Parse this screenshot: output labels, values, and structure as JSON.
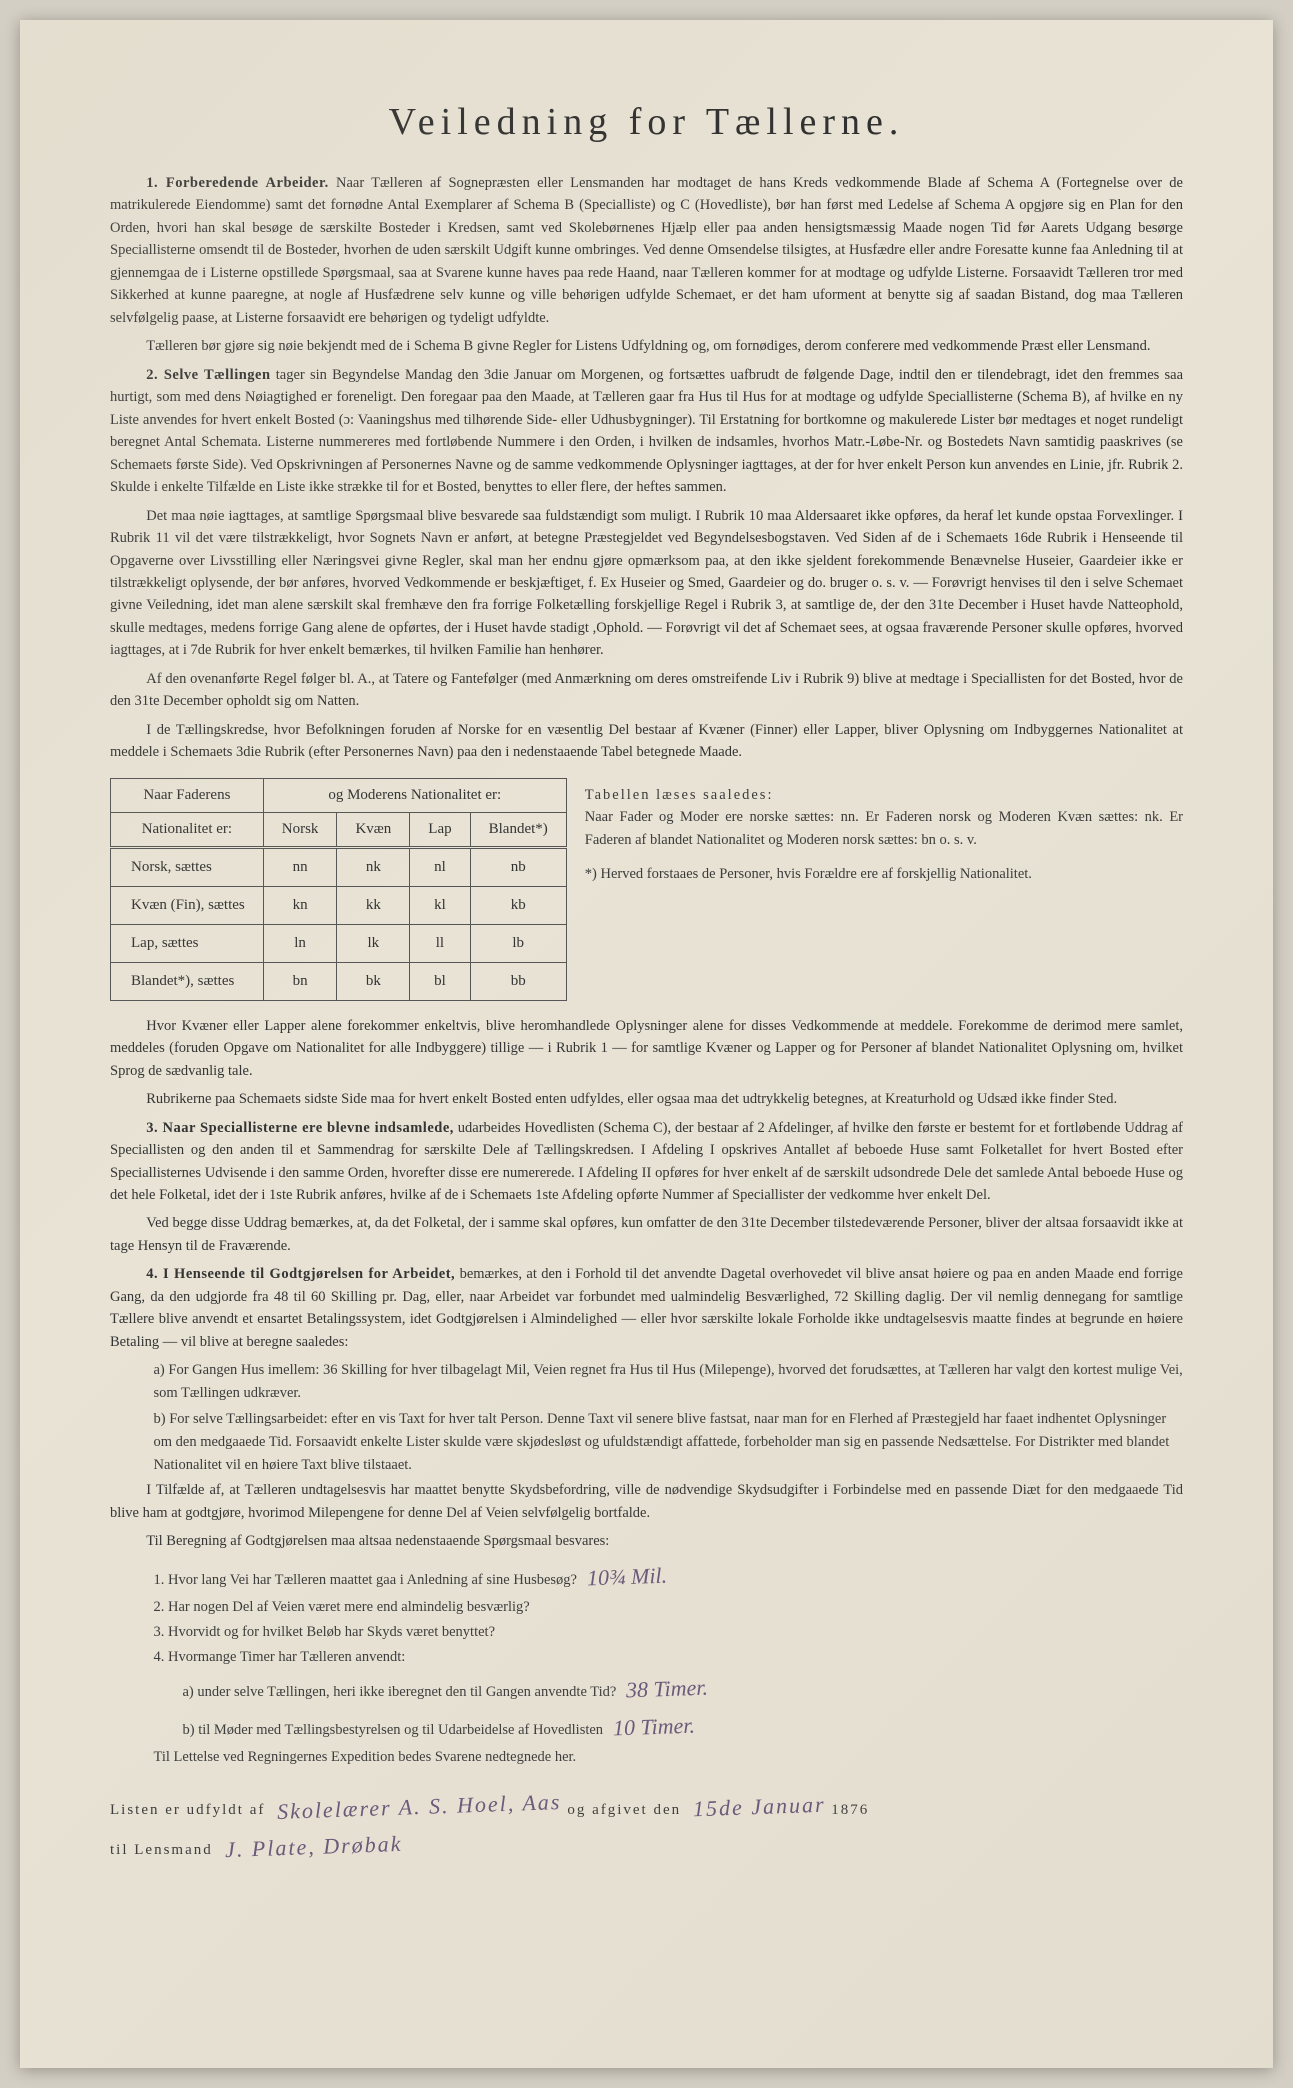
{
  "title": "Veiledning for Tællerne.",
  "paragraphs": {
    "p1_lead": "1. Forberedende Arbeider.",
    "p1": "Naar Tælleren af Sognepræsten eller Lensmanden har modtaget de hans Kreds vedkommende Blade af Schema A (Fortegnelse over de matrikulerede Eiendomme) samt det fornødne Antal Exemplarer af Schema B (Specialliste) og C (Hovedliste), bør han først med Ledelse af Schema A opgjøre sig en Plan for den Orden, hvori han skal besøge de særskilte Bosteder i Kredsen, samt ved Skolebørnenes Hjælp eller paa anden hensigtsmæssig Maade nogen Tid før Aarets Udgang besørge Speciallisterne omsendt til de Bosteder, hvorhen de uden særskilt Udgift kunne ombringes. Ved denne Omsendelse tilsigtes, at Husfædre eller andre Foresatte kunne faa Anledning til at gjennemgaa de i Listerne opstillede Spørgsmaal, saa at Svarene kunne haves paa rede Haand, naar Tælleren kommer for at modtage og udfylde Listerne. Forsaavidt Tælleren tror med Sikkerhed at kunne paaregne, at nogle af Husfædrene selv kunne og ville behørigen udfylde Schemaet, er det ham uforment at benytte sig af saadan Bistand, dog maa Tælleren selvfølgelig paase, at Listerne forsaavidt ere behørigen og tydeligt udfyldte.",
    "p1b": "Tælleren bør gjøre sig nøie bekjendt med de i Schema B givne Regler for Listens Udfyldning og, om fornødiges, derom conferere med vedkommende Præst eller Lensmand.",
    "p2_lead": "2. Selve Tællingen",
    "p2": "tager sin Begyndelse Mandag den 3die Januar om Morgenen, og fortsættes uafbrudt de følgende Dage, indtil den er tilendebragt, idet den fremmes saa hurtigt, som med dens Nøiagtighed er foreneligt. Den foregaar paa den Maade, at Tælleren gaar fra Hus til Hus for at modtage og udfylde Speciallisterne (Schema B), af hvilke en ny Liste anvendes for hvert enkelt Bosted (ɔ: Vaaningshus med tilhørende Side- eller Udhusbygninger). Til Erstatning for bortkomne og makulerede Lister bør medtages et noget rundeligt beregnet Antal Schemata. Listerne nummereres med fortløbende Nummere i den Orden, i hvilken de indsamles, hvorhos Matr.-Løbe-Nr. og Bostedets Navn samtidig paaskrives (se Schemaets første Side). Ved Opskrivningen af Personernes Navne og de samme vedkommende Oplysninger iagttages, at der for hver enkelt Person kun anvendes en Linie, jfr. Rubrik 2. Skulde i enkelte Tilfælde en Liste ikke strække til for et Bosted, benyttes to eller flere, der heftes sammen.",
    "p2b": "Det maa nøie iagttages, at samtlige Spørgsmaal blive besvarede saa fuldstændigt som muligt. I Rubrik 10 maa Aldersaaret ikke opføres, da heraf let kunde opstaa Forvexlinger. I Rubrik 11 vil det være tilstrækkeligt, hvor Sognets Navn er anført, at betegne Præstegjeldet ved Begyndelsesbogstaven. Ved Siden af de i Schemaets 16de Rubrik i Henseende til Opgaverne over Livsstilling eller Næringsvei givne Regler, skal man her endnu gjøre opmærksom paa, at den ikke sjeldent forekommende Benævnelse Huseier, Gaardeier ikke er tilstrækkeligt oplysende, der bør anføres, hvorved Vedkommende er beskjæftiget, f. Ex Huseier og Smed, Gaardeier og do. bruger o. s. v. — Forøvrigt henvises til den i selve Schemaet givne Veiledning, idet man alene særskilt skal fremhæve den fra forrige Folketælling forskjellige Regel i Rubrik 3, at samtlige de, der den 31te December i Huset havde Natteophold, skulle medtages, medens forrige Gang alene de opførtes, der i Huset havde stadigt ,Ophold. — Forøvrigt vil det af Schemaet sees, at ogsaa fraværende Personer skulle opføres, hvorved iagttages, at i 7de Rubrik for hver enkelt bemærkes, til hvilken Familie han henhører.",
    "p2c": "Af den ovenanførte Regel følger bl. A., at Tatere og Fantefølger (med Anmærkning om deres omstreifende Liv i Rubrik 9) blive at medtage i Speciallisten for det Bosted, hvor de den 31te December opholdt sig om Natten.",
    "p2d": "I de Tællingskredse, hvor Befolkningen foruden af Norske for en væsentlig Del bestaar af Kvæner (Finner) eller Lapper, bliver Oplysning om Indbyggernes Nationalitet at meddele i Schemaets 3die Rubrik (efter Personernes Navn) paa den i nedenstaaende Tabel betegnede Maade.",
    "p3a": "Hvor Kvæner eller Lapper alene forekommer enkeltvis, blive heromhandlede Oplysninger alene for disses Vedkommende at meddele. Forekomme de derimod mere samlet, meddeles (foruden Opgave om Nationalitet for alle Indbyggere) tillige — i Rubrik 1 — for samtlige Kvæner og Lapper og for Personer af blandet Nationalitet Oplysning om, hvilket Sprog de sædvanlig tale.",
    "p3b": "Rubrikerne paa Schemaets sidste Side maa for hvert enkelt Bosted enten udfyldes, eller ogsaa maa det udtrykkelig betegnes, at Kreaturhold og Udsæd ikke finder Sted.",
    "p4_lead": "3. Naar Speciallisterne ere blevne indsamlede,",
    "p4": "udarbeides Hovedlisten (Schema C), der bestaar af 2 Afdelinger, af hvilke den første er bestemt for et fortløbende Uddrag af Speciallisten og den anden til et Sammendrag for særskilte Dele af Tællingskredsen. I Afdeling I opskrives Antallet af beboede Huse samt Folketallet for hvert Bosted efter Speciallisternes Udvisende i den samme Orden, hvorefter disse ere numererede. I Afdeling II opføres for hver enkelt af de særskilt udsondrede Dele det samlede Antal beboede Huse og det hele Folketal, idet der i 1ste Rubrik anføres, hvilke af de i Schemaets 1ste Afdeling opførte Nummer af Speciallister der vedkomme hver enkelt Del.",
    "p4b": "Ved begge disse Uddrag bemærkes, at, da det Folketal, der i samme skal opføres, kun omfatter de den 31te December tilstedeværende Personer, bliver der altsaa forsaavidt ikke at tage Hensyn til de Fraværende.",
    "p5_lead": "4. I Henseende til Godtgjørelsen for Arbeidet,",
    "p5": "bemærkes, at den i Forhold til det anvendte Dagetal overhovedet vil blive ansat høiere og paa en anden Maade end forrige Gang, da den udgjorde fra 48 til 60 Skilling pr. Dag, eller, naar Arbeidet var forbundet med ualmindelig Besværlighed, 72 Skilling daglig. Der vil nemlig dennegang for samtlige Tællere blive anvendt et ensartet Betalingssystem, idet Godtgjørelsen i Almindelighed — eller hvor særskilte lokale Forholde ikke undtagelsesvis maatte findes at begrunde en høiere Betaling — vil blive at beregne saaledes:",
    "p5a": "a) For Gangen Hus imellem: 36 Skilling for hver tilbagelagt Mil, Veien regnet fra Hus til Hus (Milepenge), hvorved det forudsættes, at Tælleren har valgt den kortest mulige Vei, som Tællingen udkræver.",
    "p5b": "b) For selve Tællingsarbeidet: efter en vis Taxt for hver talt Person. Denne Taxt vil senere blive fastsat, naar man for en Flerhed af Præstegjeld har faaet indhentet Oplysninger om den medgaaede Tid. Forsaavidt enkelte Lister skulde være skjødesløst og ufuldstændigt affattede, forbeholder man sig en passende Nedsættelse. For Distrikter med blandet Nationalitet vil en høiere Taxt blive tilstaaet.",
    "p5c": "I Tilfælde af, at Tælleren undtagelsesvis har maattet benytte Skydsbefordring, ville de nødvendige Skydsudgifter i Forbindelse med en passende Diæt for den medgaaede Tid blive ham at godtgjøre, hvorimod Milepengene for denne Del af Veien selvfølgelig bortfalde.",
    "p5d": "Til Beregning af Godtgjørelsen maa altsaa nedenstaaende Spørgsmaal besvares:"
  },
  "table": {
    "header1": "Naar Faderens",
    "header2": "og Moderens Nationalitet er:",
    "sub_header": "Nationalitet er:",
    "cols": [
      "Norsk",
      "Kvæn",
      "Lap",
      "Blandet*)"
    ],
    "rows": [
      {
        "label": "Norsk, sættes",
        "cells": [
          "nn",
          "nk",
          "nl",
          "nb"
        ]
      },
      {
        "label": "Kvæn (Fin), sættes",
        "cells": [
          "kn",
          "kk",
          "kl",
          "kb"
        ]
      },
      {
        "label": "Lap, sættes",
        "cells": [
          "ln",
          "lk",
          "ll",
          "lb"
        ]
      },
      {
        "label": "Blandet*), sættes",
        "cells": [
          "bn",
          "bk",
          "bl",
          "bb"
        ]
      }
    ]
  },
  "side_notes": {
    "note1_head": "Tabellen læses saaledes:",
    "note1": "Naar Fader og Moder ere norske sættes: nn. Er Faderen norsk og Moderen Kvæn sættes: nk. Er Faderen af blandet Nationalitet og Moderen norsk sættes: bn o. s. v.",
    "note2": "*) Herved forstaaes de Personer, hvis Forældre ere af forskjellig Nationalitet."
  },
  "questions": {
    "q1": "1. Hvor lang Vei har Tælleren maattet gaa i Anledning af sine Husbesøg?",
    "q1_hand": "10¾ Mil.",
    "q2": "2. Har nogen Del af Veien været mere end almindelig besværlig?",
    "q3": "3. Hvorvidt og for hvilket Beløb har Skyds været benyttet?",
    "q4": "4. Hvormange Timer har Tælleren anvendt:",
    "q4a": "a) under selve Tællingen, heri ikke iberegnet den til Gangen anvendte Tid?",
    "q4a_hand": "38 Timer.",
    "q4b": "b) til Møder med Tællingsbestyrelsen og til Udarbeidelse af Hovedlisten",
    "q4b_hand": "10 Timer.",
    "q5": "Til Lettelse ved Regningernes Expedition bedes Svarene nedtegnede her."
  },
  "signature": {
    "line1_pre": "Listen er udfyldt af",
    "line1_name": "Skolelærer A. S. Hoel, Aas",
    "line1_mid": "og afgivet den",
    "line1_date": "15de Januar",
    "line1_year": "1876",
    "line2_pre": "til Lensmand",
    "line2_name": "J. Plate, Drøbak"
  },
  "colors": {
    "paper": "#e8e3d5",
    "text": "#333333",
    "border": "#555555",
    "handwriting": "#6b5a7a"
  }
}
